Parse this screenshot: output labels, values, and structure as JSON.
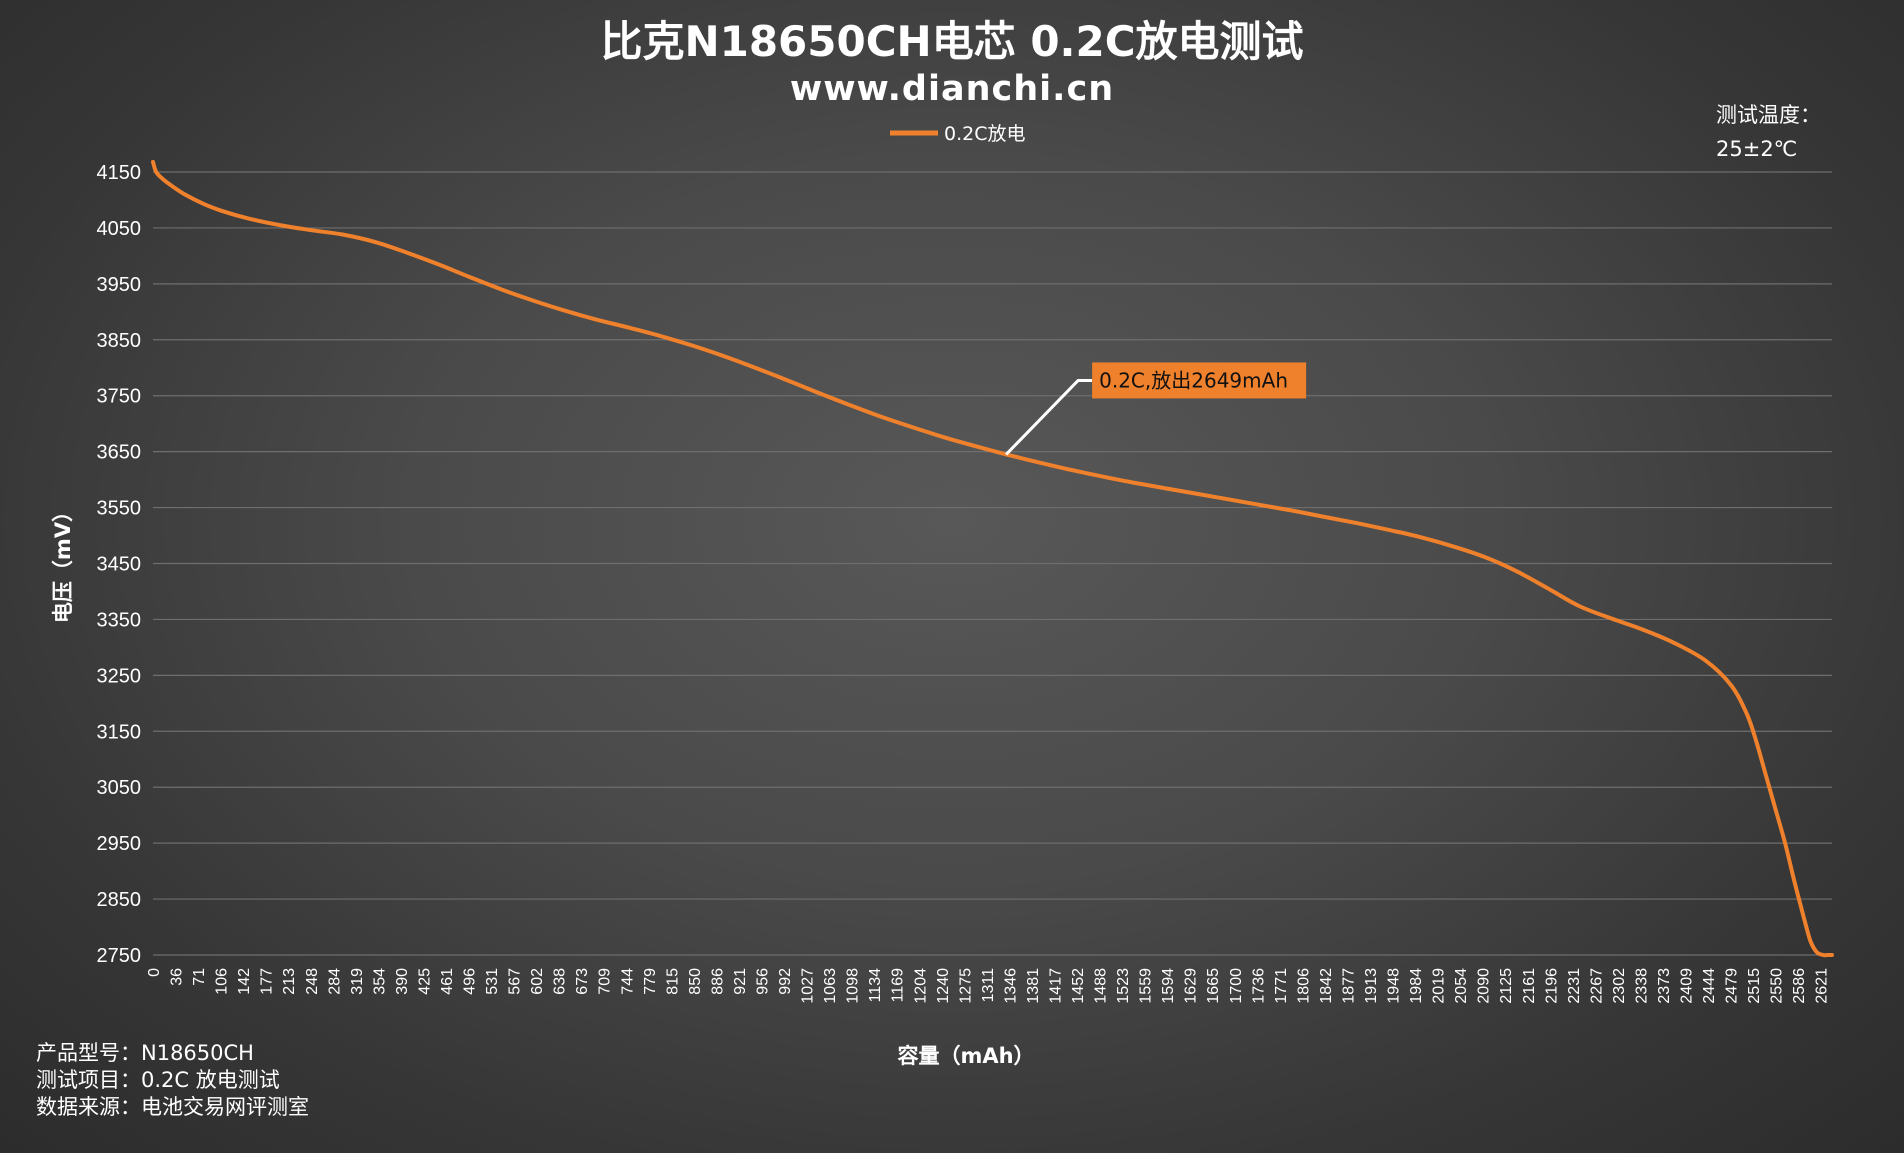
{
  "title": "比克N18650CH电芯 0.2C放电测试",
  "subtitle": "www.dianchi.cn",
  "legend": {
    "label": "0.2C放电"
  },
  "note": {
    "line1": "测试温度：",
    "line2": "25±2℃"
  },
  "footer": {
    "line1": "产品型号：N18650CH",
    "line2": "测试项目：0.2C 放电测试",
    "line3": "数据来源：电池交易网评测室"
  },
  "colors": {
    "series": "#f0812c",
    "grid": "#6e6e6e",
    "callout_bg": "#f0812c",
    "leader": "#ffffff"
  },
  "chart_data": {
    "type": "line",
    "title": "比克N18650CH电芯 0.2C放电测试",
    "xlabel": "容量（mAh）",
    "ylabel": "电压（mV）",
    "ylim": [
      2750,
      4150
    ],
    "yticks": [
      4150,
      4050,
      3950,
      3850,
      3750,
      3650,
      3550,
      3450,
      3350,
      3250,
      3150,
      3050,
      2950,
      2850,
      2750
    ],
    "xlim": [
      0,
      2649
    ],
    "xticks": [
      0,
      36,
      71,
      106,
      142,
      177,
      213,
      248,
      284,
      319,
      354,
      390,
      425,
      461,
      496,
      531,
      567,
      602,
      638,
      673,
      709,
      744,
      779,
      815,
      850,
      886,
      921,
      956,
      992,
      1027,
      1063,
      1098,
      1134,
      1169,
      1204,
      1240,
      1275,
      1311,
      1346,
      1381,
      1417,
      1452,
      1488,
      1523,
      1559,
      1594,
      1629,
      1665,
      1700,
      1736,
      1771,
      1806,
      1842,
      1877,
      1913,
      1948,
      1984,
      2019,
      2054,
      2090,
      2125,
      2161,
      2196,
      2231,
      2267,
      2302,
      2338,
      2373,
      2409,
      2444,
      2479,
      2515,
      2550,
      2586,
      2621
    ],
    "grid": true,
    "legend_position": "top-center",
    "series": [
      {
        "name": "0.2C放电",
        "x": [
          0,
          5,
          15,
          30,
          50,
          80,
          110,
          150,
          200,
          250,
          300,
          350,
          400,
          450,
          500,
          550,
          600,
          650,
          700,
          750,
          800,
          850,
          900,
          950,
          1000,
          1050,
          1100,
          1150,
          1200,
          1250,
          1300,
          1346,
          1400,
          1450,
          1500,
          1550,
          1600,
          1650,
          1700,
          1750,
          1800,
          1850,
          1900,
          1950,
          2000,
          2050,
          2100,
          2150,
          2200,
          2250,
          2300,
          2350,
          2400,
          2450,
          2490,
          2515,
          2530,
          2545,
          2560,
          2575,
          2590,
          2605,
          2615,
          2625,
          2635,
          2642,
          2649
        ],
        "values": [
          4168,
          4150,
          4138,
          4125,
          4110,
          4093,
          4080,
          4067,
          4055,
          4046,
          4038,
          4025,
          4006,
          3985,
          3962,
          3940,
          3920,
          3902,
          3886,
          3872,
          3857,
          3840,
          3821,
          3800,
          3778,
          3755,
          3733,
          3712,
          3693,
          3675,
          3659,
          3645,
          3630,
          3617,
          3605,
          3594,
          3584,
          3574,
          3564,
          3554,
          3544,
          3533,
          3522,
          3510,
          3497,
          3481,
          3462,
          3437,
          3406,
          3374,
          3352,
          3332,
          3308,
          3276,
          3232,
          3180,
          3130,
          3070,
          3010,
          2950,
          2880,
          2815,
          2775,
          2755,
          2750,
          2750,
          2750
        ]
      }
    ],
    "annotations": [
      {
        "text": "0.2C,放出2649mAh",
        "x": 1346,
        "y": 3645
      }
    ]
  }
}
